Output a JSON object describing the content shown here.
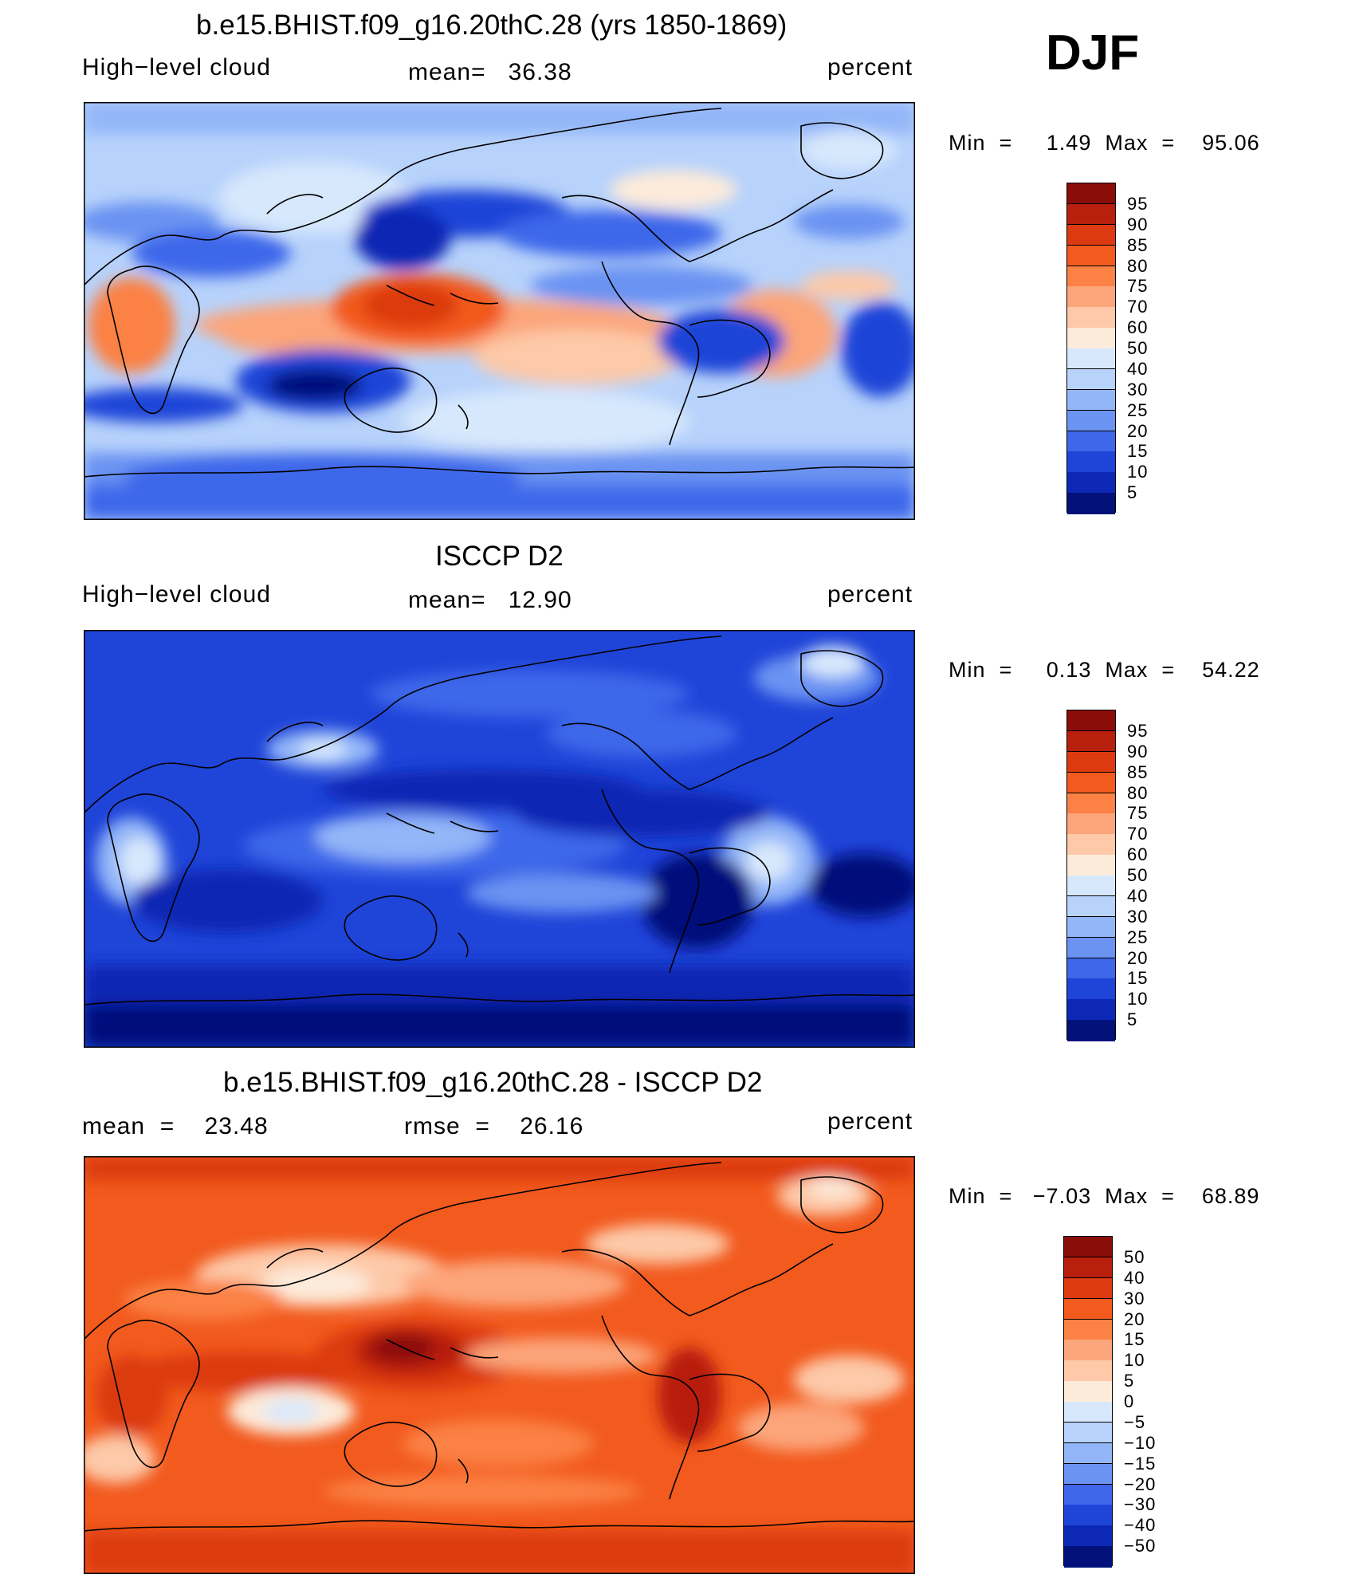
{
  "season": "DJF",
  "panels": [
    {
      "title": "b.e15.BHIST.f09_g16.20thC.28 (yrs 1850-1869)",
      "left_label": "High−level cloud",
      "center_label": "mean=   36.38",
      "right_label": "percent",
      "minmax": "Min  =     1.49  Max  =    95.06",
      "palette": "sequential"
    },
    {
      "title": "ISCCP D2",
      "left_label": "High−level cloud",
      "center_label": "mean=   12.90",
      "right_label": "percent",
      "minmax": "Min  =     0.13  Max  =    54.22",
      "palette": "sequential"
    },
    {
      "title": "b.e15.BHIST.f09_g16.20thC.28 - ISCCP D2",
      "left_label": "mean  =    23.48",
      "center_label": "rmse  =    26.16",
      "right_label": "percent",
      "minmax": "Min  =   −7.03  Max  =    68.89",
      "palette": "diverging"
    }
  ],
  "colorbars": {
    "sequential": {
      "levels": [
        "95",
        "90",
        "85",
        "80",
        "75",
        "70",
        "60",
        "50",
        "40",
        "30",
        "25",
        "20",
        "15",
        "10",
        "5"
      ],
      "colors": [
        "#8b0d0a",
        "#b81f0c",
        "#dc3a10",
        "#f25a1e",
        "#fb8145",
        "#fca57a",
        "#fdc9a8",
        "#fdebda",
        "#d7e8fc",
        "#b7d2fb",
        "#93b6f8",
        "#6b93f2",
        "#3e67ea",
        "#1f44d8",
        "#0d28b4",
        "#03117a"
      ]
    },
    "diverging": {
      "levels": [
        "50",
        "40",
        "30",
        "20",
        "15",
        "10",
        "5",
        "0",
        "−5",
        "−10",
        "−15",
        "−20",
        "−30",
        "−40",
        "−50"
      ],
      "colors": [
        "#8b0d0a",
        "#b81f0c",
        "#dc3a10",
        "#f25a1e",
        "#fb8145",
        "#fca57a",
        "#fdc9a8",
        "#fdebda",
        "#d7e8fc",
        "#b7d2fb",
        "#93b6f8",
        "#6b93f2",
        "#3e67ea",
        "#1f44d8",
        "#0d28b4",
        "#03117a"
      ]
    }
  }
}
